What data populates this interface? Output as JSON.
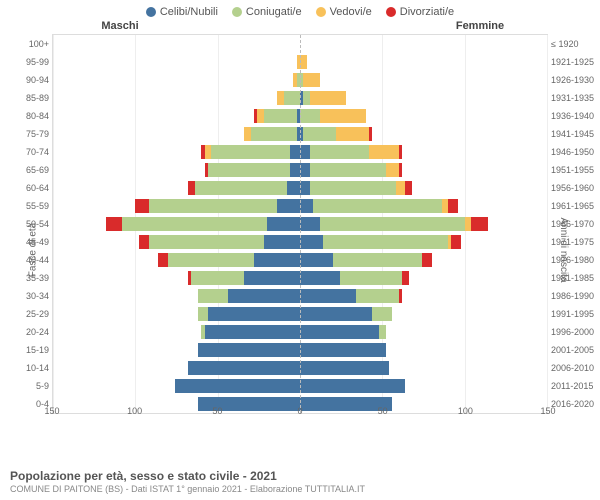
{
  "legend": {
    "items": [
      {
        "label": "Celibi/Nubili",
        "color": "#4473a0"
      },
      {
        "label": "Coniugati/e",
        "color": "#b4d08e"
      },
      {
        "label": "Vedovi/e",
        "color": "#f8c15a"
      },
      {
        "label": "Divorziati/e",
        "color": "#d92b2b"
      }
    ]
  },
  "headers": {
    "male": "Maschi",
    "female": "Femmine"
  },
  "axis_labels": {
    "left": "Fasce di età",
    "right": "Anni di nascita"
  },
  "xaxis": {
    "max": 150,
    "ticks": [
      150,
      100,
      50,
      0,
      50,
      100,
      150
    ]
  },
  "footer": {
    "title": "Popolazione per età, sesso e stato civile - 2021",
    "subtitle": "COMUNE DI PAITONE (BS) - Dati ISTAT 1° gennaio 2021 - Elaborazione TUTTITALIA.IT"
  },
  "colors": {
    "celibi": "#4473a0",
    "coniugati": "#b4d08e",
    "vedovi": "#f8c15a",
    "divorziati": "#d92b2b",
    "grid": "#eeeeee",
    "center": "#bbbbbb"
  },
  "rows": [
    {
      "age": "100+",
      "birth": "≤ 1920",
      "m": [
        0,
        0,
        0,
        0
      ],
      "f": [
        0,
        0,
        0,
        0
      ]
    },
    {
      "age": "95-99",
      "birth": "1921-1925",
      "m": [
        0,
        0,
        2,
        0
      ],
      "f": [
        0,
        0,
        4,
        0
      ]
    },
    {
      "age": "90-94",
      "birth": "1926-1930",
      "m": [
        0,
        2,
        2,
        0
      ],
      "f": [
        0,
        2,
        10,
        0
      ]
    },
    {
      "age": "85-89",
      "birth": "1931-1935",
      "m": [
        0,
        10,
        4,
        0
      ],
      "f": [
        2,
        4,
        22,
        0
      ]
    },
    {
      "age": "80-84",
      "birth": "1936-1940",
      "m": [
        2,
        20,
        4,
        2
      ],
      "f": [
        0,
        12,
        28,
        0
      ]
    },
    {
      "age": "75-79",
      "birth": "1941-1945",
      "m": [
        2,
        28,
        4,
        0
      ],
      "f": [
        2,
        20,
        20,
        2
      ]
    },
    {
      "age": "70-74",
      "birth": "1946-1950",
      "m": [
        6,
        48,
        4,
        2
      ],
      "f": [
        6,
        36,
        18,
        2
      ]
    },
    {
      "age": "65-69",
      "birth": "1951-1955",
      "m": [
        6,
        50,
        0,
        2
      ],
      "f": [
        6,
        46,
        8,
        2
      ]
    },
    {
      "age": "60-64",
      "birth": "1956-1960",
      "m": [
        8,
        56,
        0,
        4
      ],
      "f": [
        6,
        52,
        6,
        4
      ]
    },
    {
      "age": "55-59",
      "birth": "1961-1965",
      "m": [
        14,
        78,
        0,
        8
      ],
      "f": [
        8,
        78,
        4,
        6
      ]
    },
    {
      "age": "50-54",
      "birth": "1966-1970",
      "m": [
        20,
        88,
        0,
        10
      ],
      "f": [
        12,
        88,
        4,
        10
      ]
    },
    {
      "age": "45-49",
      "birth": "1971-1975",
      "m": [
        22,
        70,
        0,
        6
      ],
      "f": [
        14,
        76,
        2,
        6
      ]
    },
    {
      "age": "40-44",
      "birth": "1976-1980",
      "m": [
        28,
        52,
        0,
        6
      ],
      "f": [
        20,
        54,
        0,
        6
      ]
    },
    {
      "age": "35-39",
      "birth": "1981-1985",
      "m": [
        34,
        32,
        0,
        2
      ],
      "f": [
        24,
        38,
        0,
        4
      ]
    },
    {
      "age": "30-34",
      "birth": "1986-1990",
      "m": [
        44,
        18,
        0,
        0
      ],
      "f": [
        34,
        26,
        0,
        2
      ]
    },
    {
      "age": "25-29",
      "birth": "1991-1995",
      "m": [
        56,
        6,
        0,
        0
      ],
      "f": [
        44,
        12,
        0,
        0
      ]
    },
    {
      "age": "20-24",
      "birth": "1996-2000",
      "m": [
        58,
        2,
        0,
        0
      ],
      "f": [
        48,
        4,
        0,
        0
      ]
    },
    {
      "age": "15-19",
      "birth": "2001-2005",
      "m": [
        62,
        0,
        0,
        0
      ],
      "f": [
        52,
        0,
        0,
        0
      ]
    },
    {
      "age": "10-14",
      "birth": "2006-2010",
      "m": [
        68,
        0,
        0,
        0
      ],
      "f": [
        54,
        0,
        0,
        0
      ]
    },
    {
      "age": "5-9",
      "birth": "2011-2015",
      "m": [
        76,
        0,
        0,
        0
      ],
      "f": [
        64,
        0,
        0,
        0
      ]
    },
    {
      "age": "0-4",
      "birth": "2016-2020",
      "m": [
        62,
        0,
        0,
        0
      ],
      "f": [
        56,
        0,
        0,
        0
      ]
    }
  ]
}
